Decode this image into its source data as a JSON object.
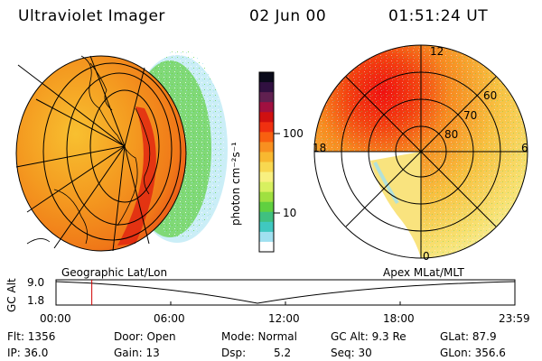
{
  "header": {
    "instrument": "Ultraviolet Imager",
    "date": "02 Jun 00",
    "time": "01:51:24 UT"
  },
  "colorbar": {
    "unit_label": "photon cm⁻²s⁻¹",
    "ticks": [
      "100",
      "10"
    ],
    "colors": [
      "#0a0a1a",
      "#301040",
      "#602050",
      "#a01040",
      "#d01010",
      "#f03010",
      "#f86010",
      "#f89020",
      "#f8b830",
      "#f8d850",
      "#f8f080",
      "#d8f060",
      "#a0e040",
      "#60d040",
      "#40c080",
      "#40c8c0",
      "#a0e0f0",
      "#ffffff"
    ]
  },
  "left_panel": {
    "label": "Geographic Lat/Lon",
    "grid_color": "#000000"
  },
  "right_panel": {
    "label": "Apex MLat/MLT",
    "mlt_labels": [
      "12",
      "18",
      "6",
      "0"
    ],
    "mlat_labels": [
      "60",
      "70",
      "80"
    ]
  },
  "altitude_plot": {
    "axis_label": "GC Alt",
    "y_ticks": [
      "9.0",
      "1.8"
    ],
    "x_ticks": [
      "00:00",
      "06:00",
      "12:00",
      "18:00",
      "23:59"
    ],
    "marker_time_fraction": 0.078,
    "marker_color": "#d00000"
  },
  "status": {
    "flt": "Flt: 1356",
    "ip": "IP: 36.0",
    "door": "Door: Open",
    "gain": "Gain: 13",
    "mode": "Mode: Normal",
    "dsp_label": "Dsp:",
    "dsp_value": "5.2",
    "gc_alt": "GC Alt: 9.3 Re",
    "seq": "Seq: 30",
    "glat": "GLat: 87.9",
    "glon": "GLon: 356.6"
  }
}
